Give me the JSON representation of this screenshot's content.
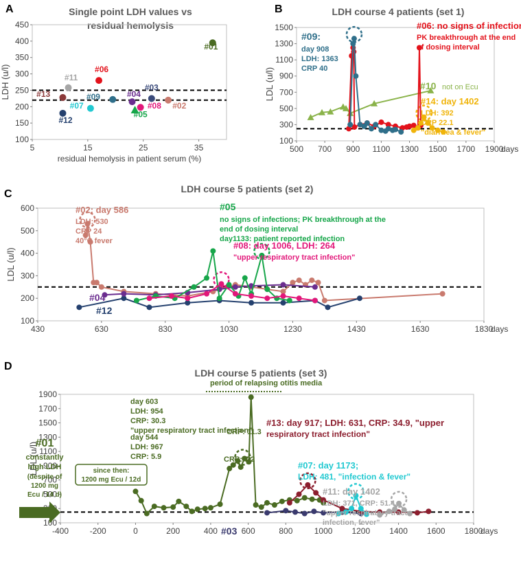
{
  "chart_data": [
    {
      "id": "A",
      "type": "scatter",
      "panel_label": "A",
      "title": [
        "Single point LDH values vs",
        "residual hemolysis"
      ],
      "xlabel": "residual hemolysis in patient serum (%)",
      "ylabel": "LDH (u/l)",
      "xlim": [
        5,
        40
      ],
      "ylim": [
        100,
        450
      ],
      "xticks": [
        "5",
        "15",
        "25",
        "35"
      ],
      "xtick_values": [
        5,
        15,
        25,
        35
      ],
      "yticks": [
        "100",
        "150",
        "200",
        "250",
        "300",
        "350",
        "400",
        "450"
      ],
      "ytick_values": [
        100,
        150,
        200,
        250,
        300,
        350,
        400,
        450
      ],
      "reference_lines": [
        250,
        220
      ],
      "points": [
        {
          "label": "#01",
          "x": 37.5,
          "y": 395,
          "color": "#4a6b22",
          "shape": "circle",
          "lx": 37.2,
          "ly": 375
        },
        {
          "label": "#02",
          "x": 29.5,
          "y": 220,
          "color": "#c97a6e",
          "shape": "circle",
          "lx": 31.5,
          "ly": 194
        },
        {
          "label": "#03",
          "x": 26.5,
          "y": 225,
          "color": "#3a4a7a",
          "shape": "circle",
          "lx": 26.5,
          "ly": 250
        },
        {
          "label": "#04",
          "x": 23.0,
          "y": 215,
          "color": "#6a2d8f",
          "shape": "circle",
          "lx": 23.3,
          "ly": 230
        },
        {
          "label": "#05",
          "x": 23.5,
          "y": 190,
          "color": "#17a64a",
          "shape": "triangle",
          "lx": 24.5,
          "ly": 168
        },
        {
          "label": "#06",
          "x": 17.0,
          "y": 280,
          "color": "#e3121b",
          "shape": "circle",
          "lx": 17.5,
          "ly": 305
        },
        {
          "label": "#07",
          "x": 15.5,
          "y": 195,
          "color": "#22c9d1",
          "shape": "circle",
          "lx": 13.0,
          "ly": 194
        },
        {
          "label": "#08",
          "x": 24.5,
          "y": 198,
          "color": "#e2177a",
          "shape": "circle",
          "lx": 27.0,
          "ly": 194
        },
        {
          "label": "#09",
          "x": 19.5,
          "y": 222,
          "color": "#2f6f8a",
          "shape": "circle",
          "lx": 16.0,
          "ly": 222
        },
        {
          "label": "#11",
          "x": 11.5,
          "y": 258,
          "color": "#a6a6a6",
          "shape": "circle",
          "lx": 12.0,
          "ly": 280
        },
        {
          "label": "#12",
          "x": 10.5,
          "y": 180,
          "color": "#24406e",
          "shape": "circle",
          "lx": 11.0,
          "ly": 150
        },
        {
          "label": "#13",
          "x": 10.5,
          "y": 228,
          "color": "#8c3a3a",
          "shape": "circle",
          "lx": 7.0,
          "ly": 230
        }
      ]
    },
    {
      "id": "B",
      "type": "line",
      "panel_label": "B",
      "title": "LDH course 4 patients (set 1)",
      "xlabel": "days",
      "ylabel": "LDL (u/l)",
      "xlim": [
        500,
        1900
      ],
      "ylim": [
        100,
        1500
      ],
      "xticks": [
        "500",
        "700",
        "900",
        "1100",
        "1300",
        "1500",
        "1700",
        "1900"
      ],
      "xtick_values": [
        500,
        700,
        900,
        1100,
        1300,
        1500,
        1700,
        1900
      ],
      "yticks": [
        "100",
        "300",
        "500",
        "700",
        "900",
        "1100",
        "1300",
        "1500"
      ],
      "ytick_values": [
        100,
        300,
        500,
        700,
        900,
        1100,
        1300,
        1500
      ],
      "reference_lines": [
        250
      ],
      "series": [
        {
          "name": "#10",
          "color": "#8ab34a",
          "marker": "triangle",
          "x": [
            600,
            680,
            740,
            830,
            850,
            880,
            1050,
            1450
          ],
          "y": [
            390,
            450,
            460,
            520,
            500,
            440,
            560,
            720
          ]
        },
        {
          "name": "#06",
          "color": "#e3121b",
          "marker": "circle",
          "x": [
            870,
            890,
            900,
            905,
            910,
            950,
            1000,
            1050,
            1100,
            1150,
            1200,
            1250,
            1280,
            1300,
            1330,
            1360,
            1370,
            1380
          ],
          "y": [
            250,
            1150,
            1250,
            1200,
            270,
            300,
            320,
            280,
            330,
            300,
            280,
            260,
            270,
            280,
            290,
            260,
            1250,
            290
          ]
        },
        {
          "name": "#09",
          "color": "#2f6f8a",
          "marker": "circle",
          "x": [
            880,
            900,
            908,
            920,
            950,
            980,
            1000,
            1030,
            1060,
            1100,
            1130,
            1150,
            1180,
            1200,
            1240
          ],
          "y": [
            300,
            1300,
            1363,
            900,
            300,
            280,
            320,
            250,
            300,
            230,
            220,
            250,
            230,
            240,
            210
          ]
        },
        {
          "name": "#14",
          "color": "#f0b40a",
          "marker": "circle",
          "x": [
            1330,
            1360,
            1380,
            1402,
            1430,
            1460,
            1500,
            1540
          ],
          "y": [
            230,
            260,
            320,
            392,
            320,
            260,
            230,
            210
          ]
        }
      ],
      "callouts": [
        {
          "target_series": "#09",
          "circle_x": 908,
          "circle_y": 1363,
          "tail_x": null,
          "tail_y": null
        },
        {
          "target_series": "#14",
          "circle_x": 1402,
          "circle_y": 392,
          "tail_x": null,
          "tail_y": null
        }
      ],
      "annotations": [
        {
          "series": "#09",
          "lines": [
            "#09:",
            "day 908",
            "LDH: 1363",
            "CRP 40"
          ]
        },
        {
          "series": "#06",
          "lines": [
            "#06: no signs of infections",
            "PK breakthrough at the end",
            "of dosing interval"
          ]
        },
        {
          "series": "#10",
          "lines": [
            "#10",
            "not on Ecu"
          ]
        },
        {
          "series": "#14",
          "lines": [
            "#14: day 1402",
            "LDH: 392",
            "CRP 22.1",
            "\"diarrhea & fever\""
          ]
        }
      ]
    },
    {
      "id": "C",
      "type": "line",
      "panel_label": "C",
      "title": "LDH course 5 patients (set 2)",
      "xlabel": "days",
      "ylabel": "LDL (u/l)",
      "xlim": [
        430,
        1830
      ],
      "ylim": [
        100,
        600
      ],
      "xticks": [
        "430",
        "630",
        "830",
        "1030",
        "1230",
        "1430",
        "1630",
        "1830"
      ],
      "xtick_values": [
        430,
        630,
        830,
        1030,
        1230,
        1430,
        1630,
        1830
      ],
      "yticks": [
        "100",
        "200",
        "300",
        "400",
        "500",
        "600"
      ],
      "ytick_values": [
        100,
        200,
        300,
        400,
        500,
        600
      ],
      "reference_lines": [
        250
      ],
      "series": [
        {
          "name": "#02",
          "color": "#c97a6e",
          "marker": "circle",
          "x": [
            580,
            586,
            595,
            605,
            615,
            630,
            700,
            800,
            900,
            980,
            1000,
            1050,
            1100,
            1150,
            1200,
            1230,
            1250,
            1270,
            1290,
            1310,
            1330,
            1700
          ],
          "y": [
            480,
            530,
            450,
            270,
            270,
            250,
            230,
            220,
            210,
            230,
            240,
            260,
            250,
            240,
            230,
            270,
            280,
            260,
            280,
            270,
            190,
            220
          ]
        },
        {
          "name": "#12",
          "color": "#24406e",
          "marker": "circle",
          "x": [
            560,
            700,
            780,
            900,
            1000,
            1100,
            1200,
            1300,
            1340,
            1440
          ],
          "y": [
            160,
            200,
            160,
            180,
            190,
            180,
            180,
            190,
            160,
            200
          ]
        },
        {
          "name": "#04",
          "color": "#6a2d8f",
          "marker": "circle",
          "x": [
            640,
            700,
            800,
            900,
            1000,
            1050,
            1100,
            1200,
            1300
          ],
          "y": [
            215,
            220,
            215,
            225,
            240,
            250,
            255,
            260,
            250
          ]
        },
        {
          "name": "#05",
          "color": "#17a64a",
          "marker": "circle",
          "x": [
            740,
            800,
            860,
            920,
            960,
            980,
            1000,
            1030,
            1060,
            1080,
            1100,
            1133,
            1150,
            1180,
            1220
          ],
          "y": [
            190,
            210,
            200,
            250,
            290,
            410,
            200,
            260,
            210,
            290,
            220,
            390,
            240,
            200,
            190
          ]
        },
        {
          "name": "#08",
          "color": "#e2177a",
          "marker": "circle",
          "x": [
            780,
            850,
            900,
            960,
            1006,
            1050,
            1100,
            1150,
            1200,
            1250,
            1300
          ],
          "y": [
            200,
            210,
            200,
            220,
            264,
            220,
            210,
            200,
            210,
            200,
            190
          ]
        }
      ],
      "callouts": [
        {
          "target_series": "#02",
          "circle_x": 586,
          "circle_y": 530
        },
        {
          "target_series": "#05",
          "circle_x": 1133,
          "circle_y": 390
        },
        {
          "target_series": "#08",
          "circle_x": 1006,
          "circle_y": 264
        }
      ],
      "annotations": [
        {
          "series": "#02",
          "lines": [
            "#02: day 586",
            "LDH: 530",
            "CRP 24",
            "40°C fever"
          ]
        },
        {
          "series": "#05",
          "lines": [
            "#05",
            "no signs of infections; PK breakthrough at the",
            "end of dosing interval",
            "day1133: patient reported infection"
          ]
        },
        {
          "series": "#08",
          "lines": [
            "#08: day 1006, LDH: 264",
            "\"upper respiratory tract infection\""
          ]
        },
        {
          "series": "#04",
          "lines": [
            "#04"
          ]
        },
        {
          "series": "#12",
          "lines": [
            "#12"
          ]
        }
      ]
    },
    {
      "id": "D",
      "type": "line",
      "panel_label": "D",
      "title": "LDH course 5 patients (set 3)",
      "xlabel": "days",
      "ylabel": "LDL (u/l)",
      "xlim": [
        -400,
        1800
      ],
      "ylim": [
        100,
        1900
      ],
      "xticks": [
        "-400",
        "-200",
        "0",
        "200",
        "400",
        "600",
        "800",
        "1000",
        "1200",
        "1400",
        "1600",
        "1800"
      ],
      "xtick_values": [
        -400,
        -200,
        0,
        200,
        400,
        600,
        800,
        1000,
        1200,
        1400,
        1600,
        1800
      ],
      "yticks": [
        "100",
        "300",
        "500",
        "700",
        "900",
        "1100",
        "1300",
        "1500",
        "1700",
        "1900"
      ],
      "ytick_values": [
        100,
        300,
        500,
        700,
        900,
        1100,
        1300,
        1500,
        1700,
        1900
      ],
      "reference_lines": [
        250
      ],
      "series": [
        {
          "name": "#01",
          "color": "#4a6b22",
          "marker": "circle",
          "x": [
            0,
            30,
            60,
            100,
            150,
            200,
            230,
            270,
            300,
            330,
            370,
            400,
            450,
            500,
            520,
            544,
            560,
            580,
            603,
            615,
            640,
            670,
            700,
            740,
            780,
            820,
            860,
            900,
            940,
            980,
            1000
          ],
          "y": [
            540,
            410,
            230,
            330,
            310,
            320,
            400,
            330,
            260,
            290,
            300,
            310,
            360,
            860,
            910,
            967,
            880,
            1000,
            954,
            1860,
            350,
            320,
            380,
            350,
            400,
            420,
            410,
            450,
            430,
            420,
            380
          ]
        },
        {
          "name": "#03",
          "color": "#3a3a6e",
          "marker": "circle",
          "x": [
            700,
            800,
            850,
            900,
            950,
            1000,
            1100,
            1200
          ],
          "y": [
            240,
            270,
            250,
            230,
            260,
            240,
            250,
            230
          ]
        },
        {
          "name": "#13",
          "color": "#8c1e2e",
          "marker": "circle",
          "x": [
            820,
            870,
            917,
            960,
            1000,
            1100,
            1200,
            1300,
            1400,
            1500,
            1560
          ],
          "y": [
            380,
            500,
            631,
            520,
            420,
            300,
            260,
            250,
            250,
            240,
            260
          ]
        },
        {
          "name": "#07",
          "color": "#22c9d1",
          "marker": "circle",
          "x": [
            1080,
            1120,
            1150,
            1173,
            1200,
            1230
          ],
          "y": [
            230,
            250,
            300,
            481,
            300,
            220
          ]
        },
        {
          "name": "#11",
          "color": "#a6a6a6",
          "marker": "circle",
          "x": [
            1300,
            1350,
            1380,
            1402,
            1430,
            1460
          ],
          "y": [
            210,
            260,
            290,
            371,
            280,
            230
          ]
        }
      ],
      "callouts": [
        {
          "target_series": "#01",
          "circle_x": 570,
          "circle_y": 960
        },
        {
          "target_series": "#13",
          "circle_x": 917,
          "circle_y": 631
        },
        {
          "target_series": "#07",
          "circle_x": 1173,
          "circle_y": 481
        },
        {
          "target_series": "#11",
          "circle_x": 1402,
          "circle_y": 371
        }
      ],
      "annotations": [
        {
          "series": "#01",
          "lines": [
            "#01",
            "constantly",
            "high LDH",
            "(despite of",
            "1200 mg",
            "Ecu / 14 d)"
          ]
        },
        {
          "series": "#01-box",
          "lines": [
            "since then:",
            "1200 mg Ecu / 12d"
          ]
        },
        {
          "series": "#01-544",
          "lines": [
            "day 544",
            "LDH: 967",
            "CRP: 5.9"
          ]
        },
        {
          "series": "#01-603",
          "lines": [
            "day 603",
            "LDH: 954",
            "CRP: 30.3",
            "\"upper respiratory tract infection\""
          ]
        },
        {
          "series": "period",
          "lines": [
            "period of relapsing otitis media"
          ]
        },
        {
          "series": "crp113",
          "lines": [
            "CRP: 11.3"
          ]
        },
        {
          "series": "crp72",
          "lines": [
            "CRP: 7.2"
          ]
        },
        {
          "series": "#13",
          "lines": [
            "#13: day 917; LDH: 631, CRP: 34.9, \"upper",
            "respiratory tract infection\""
          ]
        },
        {
          "series": "#07",
          "lines": [
            "#07: day 1173;",
            "LDH: 481, \"infection & fever\""
          ]
        },
        {
          "series": "#11",
          "lines": [
            "#11: day 1402",
            "LDH: 371, CRP: 51.4,",
            "\"upper respiratory tract",
            "infection, fever\""
          ]
        },
        {
          "series": "#03",
          "lines": [
            "#03"
          ]
        }
      ]
    }
  ]
}
